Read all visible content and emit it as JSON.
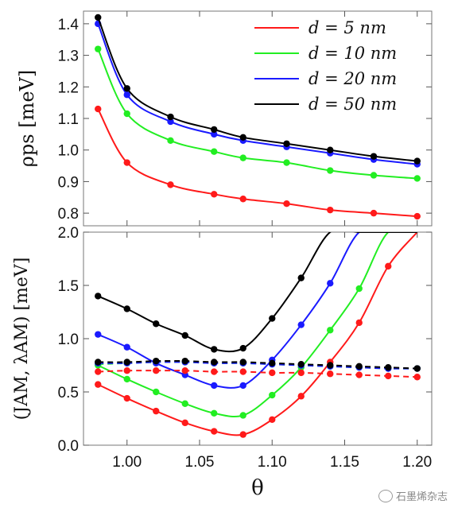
{
  "chart_data": [
    {
      "type": "line",
      "ylabel": "ρps [meV]",
      "ylim": [
        0.76,
        1.44
      ],
      "yticks": [
        "0.8",
        "0.9",
        "1.0",
        "1.1",
        "1.2",
        "1.3",
        "1.4"
      ],
      "legend": {
        "placement": "top-right",
        "entries": [
          "d = 5 nm",
          "d = 10 nm",
          "d = 20 nm",
          "d = 50 nm"
        ]
      },
      "x": [
        0.98,
        1.0,
        1.03,
        1.06,
        1.08,
        1.11,
        1.14,
        1.17,
        1.2
      ],
      "series": [
        {
          "name": "d = 5 nm",
          "color": "#ff1a1a",
          "values": [
            1.13,
            0.96,
            0.89,
            0.86,
            0.845,
            0.83,
            0.81,
            0.8,
            0.79
          ]
        },
        {
          "name": "d = 10 nm",
          "color": "#22ee22",
          "values": [
            1.32,
            1.115,
            1.03,
            0.995,
            0.975,
            0.96,
            0.935,
            0.92,
            0.91
          ]
        },
        {
          "name": "d = 20 nm",
          "color": "#1a1aff",
          "values": [
            1.4,
            1.175,
            1.09,
            1.05,
            1.03,
            1.01,
            0.99,
            0.97,
            0.955
          ]
        },
        {
          "name": "d = 50 nm",
          "color": "#000000",
          "values": [
            1.42,
            1.195,
            1.105,
            1.065,
            1.04,
            1.02,
            1.0,
            0.98,
            0.965
          ]
        }
      ]
    },
    {
      "type": "line",
      "ylabel": "(JAM, λAM) [meV]",
      "xlabel": "θ",
      "ylim": [
        0.0,
        2.0
      ],
      "xlim": [
        0.97,
        1.21
      ],
      "xticks": [
        "1.00",
        "1.05",
        "1.10",
        "1.15",
        "1.20"
      ],
      "yticks": [
        "0.0",
        "0.5",
        "1.0",
        "1.5",
        "2.0"
      ],
      "x": [
        0.98,
        1.0,
        1.02,
        1.04,
        1.06,
        1.08,
        1.1,
        1.12,
        1.14,
        1.16,
        1.18,
        1.2
      ],
      "series": [
        {
          "name": "d = 5 nm",
          "color": "#ff1a1a",
          "values": [
            0.57,
            0.44,
            0.32,
            0.21,
            0.13,
            0.1,
            0.24,
            0.46,
            0.78,
            1.15,
            1.68,
            2.0
          ]
        },
        {
          "name": "d = 10 nm",
          "color": "#22ee22",
          "values": [
            0.75,
            0.62,
            0.5,
            0.39,
            0.3,
            0.28,
            0.47,
            0.73,
            1.08,
            1.47,
            2.0,
            2.0
          ]
        },
        {
          "name": "d = 20 nm",
          "color": "#1a1aff",
          "values": [
            1.04,
            0.92,
            0.77,
            0.66,
            0.56,
            0.56,
            0.8,
            1.13,
            1.52,
            2.0,
            2.0,
            2.0
          ]
        },
        {
          "name": "d = 50 nm",
          "color": "#000000",
          "values": [
            1.4,
            1.28,
            1.14,
            1.03,
            0.9,
            0.91,
            1.19,
            1.57,
            2.0,
            2.0,
            2.0,
            2.0
          ]
        },
        {
          "name": "d = 5 nm",
          "color": "#ff1a1a",
          "dashed": true,
          "values": [
            0.69,
            0.7,
            0.7,
            0.7,
            0.69,
            0.69,
            0.68,
            0.68,
            0.67,
            0.66,
            0.65,
            0.64
          ]
        },
        {
          "name": "d = 10 nm",
          "color": "#22ee22",
          "dashed": true,
          "values": [
            0.76,
            0.77,
            0.78,
            0.78,
            0.77,
            0.77,
            0.76,
            0.75,
            0.74,
            0.73,
            0.72,
            0.72
          ]
        },
        {
          "name": "d = 20 nm",
          "color": "#1a1aff",
          "dashed": true,
          "values": [
            0.77,
            0.77,
            0.78,
            0.78,
            0.77,
            0.77,
            0.76,
            0.75,
            0.74,
            0.73,
            0.72,
            0.72
          ]
        },
        {
          "name": "d = 50 nm",
          "color": "#000000",
          "dashed": true,
          "values": [
            0.78,
            0.78,
            0.79,
            0.79,
            0.78,
            0.78,
            0.77,
            0.76,
            0.75,
            0.74,
            0.73,
            0.72
          ]
        }
      ]
    }
  ],
  "watermark": "石墨烯杂志"
}
